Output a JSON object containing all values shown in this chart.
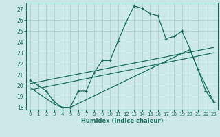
{
  "xlabel": "Humidex (Indice chaleur)",
  "bg_color": "#cce9e7",
  "grid_color": "#aad4d1",
  "line_color": "#1a6b5e",
  "xlim": [
    -0.5,
    23.5
  ],
  "ylim": [
    17.8,
    27.6
  ],
  "xticks": [
    0,
    1,
    2,
    3,
    4,
    5,
    6,
    7,
    8,
    9,
    10,
    11,
    12,
    13,
    14,
    15,
    16,
    17,
    18,
    19,
    20,
    21,
    22,
    23
  ],
  "yticks": [
    18,
    19,
    20,
    21,
    22,
    23,
    24,
    25,
    26,
    27
  ],
  "series1_x": [
    0,
    1,
    2,
    3,
    4,
    5,
    6,
    7,
    8,
    9,
    10,
    11,
    12,
    13,
    14,
    15,
    16,
    17,
    18,
    19,
    20,
    21,
    22,
    23
  ],
  "series1_y": [
    20.5,
    20.0,
    19.5,
    18.5,
    18.0,
    18.0,
    19.5,
    19.5,
    21.2,
    22.3,
    22.3,
    24.1,
    25.8,
    27.3,
    27.1,
    26.6,
    26.4,
    24.3,
    24.5,
    25.0,
    23.4,
    21.5,
    19.5,
    18.5
  ],
  "series2_x": [
    0,
    3,
    4,
    5,
    20,
    21,
    23
  ],
  "series2_y": [
    19.8,
    18.3,
    18.0,
    18.0,
    23.3,
    21.5,
    18.5
  ],
  "series3_x": [
    0,
    23
  ],
  "series3_y": [
    19.6,
    23.0
  ],
  "series4_x": [
    0,
    23
  ],
  "series4_y": [
    20.2,
    23.5
  ]
}
